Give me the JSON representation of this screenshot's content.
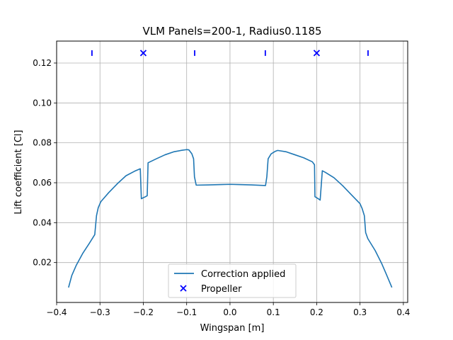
{
  "chart_data": {
    "type": "line",
    "title": "VLM Panels=200-1, Radius0.1185",
    "xlabel": "Wingspan [m]",
    "ylabel": "Lift coefficient [Cl]",
    "xlim": [
      -0.4,
      0.41
    ],
    "ylim": [
      0.0,
      0.131
    ],
    "xticks": [
      -0.4,
      -0.3,
      -0.2,
      -0.1,
      0.0,
      0.1,
      0.2,
      0.3,
      0.4
    ],
    "xtick_labels": [
      "−0.4",
      "−0.3",
      "−0.2",
      "−0.1",
      "0.0",
      "0.1",
      "0.2",
      "0.3",
      "0.4"
    ],
    "yticks": [
      0.02,
      0.04,
      0.06,
      0.08,
      0.1,
      0.12
    ],
    "ytick_labels": [
      "0.02",
      "0.04",
      "0.06",
      "0.08",
      "0.10",
      "0.12"
    ],
    "grid": true,
    "legend": {
      "placement": "lower center"
    },
    "series": [
      {
        "name": "Correction applied",
        "kind": "line",
        "color": "#1f77b4",
        "points": [
          [
            -0.3725,
            0.0075
          ],
          [
            -0.365,
            0.0135
          ],
          [
            -0.355,
            0.0185
          ],
          [
            -0.34,
            0.0245
          ],
          [
            -0.325,
            0.0295
          ],
          [
            -0.312,
            0.034
          ],
          [
            -0.308,
            0.0435
          ],
          [
            -0.304,
            0.0475
          ],
          [
            -0.298,
            0.0505
          ],
          [
            -0.28,
            0.055
          ],
          [
            -0.26,
            0.0595
          ],
          [
            -0.24,
            0.0635
          ],
          [
            -0.22,
            0.0658
          ],
          [
            -0.207,
            0.067
          ],
          [
            -0.2045,
            0.052
          ],
          [
            -0.195,
            0.053
          ],
          [
            -0.191,
            0.0535
          ],
          [
            -0.189,
            0.07
          ],
          [
            -0.17,
            0.072
          ],
          [
            -0.15,
            0.074
          ],
          [
            -0.13,
            0.0755
          ],
          [
            -0.11,
            0.0763
          ],
          [
            -0.1,
            0.0766
          ],
          [
            -0.095,
            0.0765
          ],
          [
            -0.088,
            0.0745
          ],
          [
            -0.084,
            0.072
          ],
          [
            -0.082,
            0.063
          ],
          [
            -0.078,
            0.0588
          ],
          [
            -0.05,
            0.0589
          ],
          [
            -0.02,
            0.0591
          ],
          [
            0.0,
            0.0592
          ],
          [
            0.02,
            0.0591
          ],
          [
            0.05,
            0.0589
          ],
          [
            0.082,
            0.0586
          ],
          [
            0.085,
            0.063
          ],
          [
            0.088,
            0.072
          ],
          [
            0.095,
            0.0745
          ],
          [
            0.105,
            0.0758
          ],
          [
            0.11,
            0.0762
          ],
          [
            0.13,
            0.0755
          ],
          [
            0.15,
            0.074
          ],
          [
            0.17,
            0.0725
          ],
          [
            0.19,
            0.0705
          ],
          [
            0.195,
            0.069
          ],
          [
            0.196,
            0.053
          ],
          [
            0.205,
            0.0518
          ],
          [
            0.208,
            0.0513
          ],
          [
            0.213,
            0.066
          ],
          [
            0.22,
            0.0652
          ],
          [
            0.24,
            0.0625
          ],
          [
            0.26,
            0.0585
          ],
          [
            0.28,
            0.054
          ],
          [
            0.3,
            0.0495
          ],
          [
            0.305,
            0.047
          ],
          [
            0.31,
            0.0435
          ],
          [
            0.313,
            0.035
          ],
          [
            0.318,
            0.032
          ],
          [
            0.335,
            0.026
          ],
          [
            0.35,
            0.0195
          ],
          [
            0.36,
            0.0145
          ],
          [
            0.3735,
            0.0075
          ]
        ]
      },
      {
        "name": "Propeller",
        "kind": "x-markers",
        "color": "#0000ff",
        "points": [
          [
            -0.2,
            0.125
          ],
          [
            0.2,
            0.125
          ]
        ]
      },
      {
        "name": "",
        "kind": "vline-markers",
        "color": "#0000ff",
        "points": [
          [
            -0.3185,
            0.125
          ],
          [
            -0.0815,
            0.125
          ],
          [
            0.0815,
            0.125
          ],
          [
            0.3185,
            0.125
          ]
        ]
      }
    ]
  }
}
